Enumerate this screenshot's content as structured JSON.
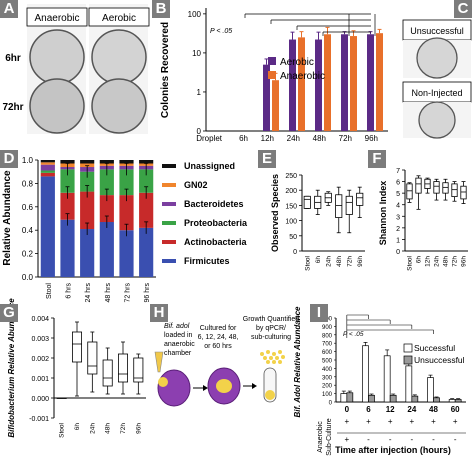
{
  "panel_letters": [
    "A",
    "B",
    "C",
    "D",
    "E",
    "F",
    "G",
    "H",
    "I"
  ],
  "panelA": {
    "col_headers": [
      "Anaerobic",
      "Aerobic"
    ],
    "row_labels": [
      "6hr",
      "72hr"
    ]
  },
  "panelC": {
    "labels": [
      "Unsuccessful",
      "Non-Injected"
    ]
  },
  "panelH": {
    "step1": [
      "Bif. adol",
      "loaded in",
      "anaerobic",
      "chamber"
    ],
    "step2": [
      "Cultured for",
      "6, 12, 24, 48,",
      "or 60 hrs"
    ],
    "step3": [
      "Growth Quantified",
      "by qPCR/",
      "sub-culturing"
    ]
  },
  "panelI_table": {
    "row_label": [
      "Anaerobic",
      "Sub-Culture"
    ],
    "top_row": [
      "+",
      "+",
      "+",
      "+",
      "+",
      "+",
      "+"
    ],
    "bottom_row": [
      "+",
      "-",
      "-",
      "-",
      "-",
      "-",
      "-"
    ]
  },
  "colors": {
    "aerobic": "#5b2a86",
    "anaerobic": "#e8702a",
    "unassigned": "#111111",
    "gn02": "#f0852d",
    "bacteroidetes": "#7b3fa0",
    "proteobacteria": "#3aa346",
    "actinobacteria": "#c72a2a",
    "firmicutes": "#3a4fb0"
  },
  "chart_data": [
    {
      "panel": "B",
      "type": "bar",
      "categories": [
        "Droplet",
        "6h",
        "12h",
        "24h",
        "48h",
        "72h",
        "96h"
      ],
      "ylabel": "Colonies Recovered",
      "yscale": "log",
      "ytick_labels": [
        "0",
        "1",
        "10",
        "100"
      ],
      "annotation": "P < .05",
      "series": [
        {
          "name": "Aerobic",
          "values": [
            0,
            0,
            5,
            22,
            22,
            30,
            30
          ],
          "err": [
            0,
            0,
            2,
            12,
            12,
            5,
            5
          ]
        },
        {
          "name": "Anaerobic",
          "values": [
            0,
            0,
            2,
            25,
            30,
            27,
            32
          ],
          "err": [
            0,
            0,
            1,
            10,
            15,
            10,
            8
          ]
        }
      ]
    },
    {
      "panel": "D",
      "type": "bar",
      "categories": [
        "Stool",
        "6 hrs",
        "24 hrs",
        "48 hrs",
        "72 hrs",
        "96 hrs"
      ],
      "ylabel": "Relative Abundance",
      "ylim": [
        0,
        1.0
      ],
      "ytick_labels": [
        "0.0",
        "0.2",
        "0.4",
        "0.6",
        "0.8",
        "1.0"
      ],
      "series": [
        {
          "name": "Firmicutes",
          "values": [
            0.86,
            0.49,
            0.41,
            0.47,
            0.4,
            0.42
          ]
        },
        {
          "name": "Actinobacteria",
          "values": [
            0.03,
            0.23,
            0.32,
            0.23,
            0.3,
            0.3
          ]
        },
        {
          "name": "Proteobacteria",
          "values": [
            0.02,
            0.2,
            0.17,
            0.22,
            0.22,
            0.2
          ]
        },
        {
          "name": "Bacteroidetes",
          "values": [
            0.05,
            0.02,
            0.04,
            0.03,
            0.03,
            0.03
          ]
        },
        {
          "name": "GN02",
          "values": [
            0.02,
            0.03,
            0.03,
            0.02,
            0.02,
            0.02
          ]
        },
        {
          "name": "Unassigned",
          "values": [
            0.02,
            0.03,
            0.03,
            0.03,
            0.03,
            0.03
          ]
        }
      ]
    },
    {
      "panel": "E",
      "type": "box",
      "categories": [
        "Stool",
        "6h",
        "24h",
        "48h",
        "72h",
        "96h"
      ],
      "ylabel": "Observed Species",
      "ylim": [
        0,
        250
      ],
      "ytick_labels": [
        "0",
        "50",
        "100",
        "150",
        "200",
        "250"
      ],
      "boxes": [
        [
          140,
          140,
          170,
          180,
          180
        ],
        [
          120,
          140,
          160,
          180,
          200
        ],
        [
          150,
          160,
          175,
          190,
          195
        ],
        [
          60,
          110,
          150,
          185,
          210
        ],
        [
          60,
          120,
          160,
          180,
          200
        ],
        [
          110,
          150,
          175,
          190,
          210
        ]
      ]
    },
    {
      "panel": "F",
      "type": "box",
      "categories": [
        "Stool",
        "6h",
        "12h",
        "24h",
        "48h",
        "72h",
        "96h"
      ],
      "ylabel": "Shannon Index",
      "ylim": [
        0,
        7
      ],
      "ytick_labels": [
        "0",
        "1",
        "2",
        "3",
        "4",
        "5",
        "6",
        "7"
      ],
      "boxes": [
        [
          4.2,
          4.5,
          5.2,
          5.8,
          5.9
        ],
        [
          3.6,
          5.0,
          5.8,
          6.3,
          6.5
        ],
        [
          5.0,
          5.4,
          5.8,
          6.2,
          6.3
        ],
        [
          4.4,
          5.0,
          5.6,
          6.0,
          6.2
        ],
        [
          4.4,
          5.0,
          5.5,
          5.9,
          6.2
        ],
        [
          4.3,
          4.7,
          5.3,
          5.8,
          6.0
        ],
        [
          4.1,
          4.5,
          5.1,
          5.6,
          6.0
        ]
      ]
    },
    {
      "panel": "G",
      "type": "box",
      "categories": [
        "Stool",
        "6h",
        "24h",
        "48h",
        "72h",
        "96h"
      ],
      "ylabel": "Bifidobacterium Relative Abundance",
      "ylim": [
        -0.001,
        0.004
      ],
      "ytick_labels": [
        "-0.001",
        "0.000",
        "0.001",
        "0.002",
        "0.003",
        "0.004"
      ],
      "boxes": [
        [
          0,
          0,
          0,
          0,
          0
        ],
        [
          0.0001,
          0.0018,
          0.0027,
          0.0033,
          0.0038
        ],
        [
          0.0003,
          0.0012,
          0.0016,
          0.0028,
          0.0033
        ],
        [
          0.0002,
          0.0006,
          0.001,
          0.0019,
          0.0025
        ],
        [
          0.0002,
          0.0008,
          0.0012,
          0.0022,
          0.0028
        ],
        [
          0.0002,
          0.0008,
          0.001,
          0.002,
          0.0022
        ]
      ]
    },
    {
      "panel": "I",
      "type": "bar",
      "categories": [
        "0",
        "6",
        "12",
        "24",
        "48",
        "60"
      ],
      "xlabel": "Time after injection (hours)",
      "ylabel": "Bif. Adol Relative Abundance",
      "ylim": [
        0,
        1000
      ],
      "ytick_labels": [
        "0",
        "100",
        "200",
        "300",
        "400",
        "500",
        "600",
        "700",
        "800",
        "900",
        "1000"
      ],
      "annotation": "P < .05",
      "series": [
        {
          "name": "Successful",
          "values": [
            100,
            670,
            550,
            430,
            290,
            30
          ],
          "err": [
            30,
            40,
            70,
            40,
            30,
            10
          ]
        },
        {
          "name": "Unsuccessful",
          "values": [
            110,
            80,
            80,
            70,
            50,
            30
          ],
          "err": [
            20,
            15,
            15,
            15,
            10,
            10
          ]
        }
      ]
    }
  ]
}
